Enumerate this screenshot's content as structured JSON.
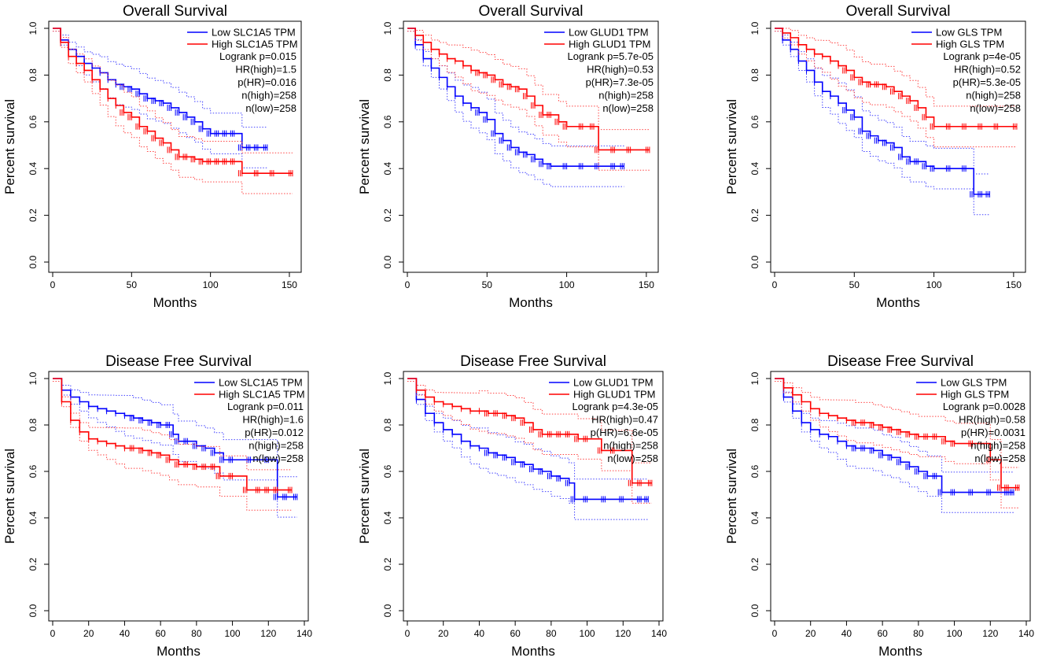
{
  "figure": {
    "description_free": true
  },
  "chart_data": [
    {
      "type": "line",
      "title": "Overall Survival",
      "xlabel": "Months",
      "ylabel": "Percent survival",
      "xlim": [
        0,
        155
      ],
      "xticks": [
        0,
        50,
        100,
        150
      ],
      "ylim": [
        0,
        1
      ],
      "yticks": [
        0.0,
        0.2,
        0.4,
        0.6,
        0.8,
        1.0
      ],
      "ytick_labels": [
        "0.0",
        "0.2",
        "0.4",
        "0.6",
        "0.8",
        "1.0"
      ],
      "legend": [
        "Low SLC1A5 TPM",
        "High SLC1A5 TPM"
      ],
      "stats": [
        "Logrank p=0.015",
        "HR(high)=1.5",
        "p(HR)=0.016",
        "n(high)=258",
        "n(low)=258"
      ],
      "series": [
        {
          "name": "Low SLC1A5 TPM",
          "color": "#0000ff",
          "x": [
            0,
            5,
            10,
            15,
            20,
            25,
            30,
            35,
            40,
            45,
            50,
            55,
            60,
            65,
            70,
            75,
            80,
            85,
            90,
            95,
            100,
            105,
            110,
            115,
            120,
            125,
            130,
            136
          ],
          "y": [
            1.0,
            0.95,
            0.91,
            0.88,
            0.85,
            0.83,
            0.81,
            0.78,
            0.76,
            0.75,
            0.74,
            0.72,
            0.7,
            0.69,
            0.68,
            0.66,
            0.64,
            0.62,
            0.6,
            0.57,
            0.55,
            0.55,
            0.55,
            0.55,
            0.49,
            0.49,
            0.49,
            0.49
          ]
        },
        {
          "name": "High SLC1A5 TPM",
          "color": "#ff0000",
          "x": [
            0,
            5,
            10,
            15,
            20,
            25,
            30,
            35,
            40,
            45,
            50,
            55,
            60,
            65,
            70,
            75,
            80,
            85,
            90,
            95,
            100,
            105,
            110,
            115,
            120,
            130,
            140,
            152
          ],
          "y": [
            1.0,
            0.94,
            0.88,
            0.85,
            0.82,
            0.78,
            0.74,
            0.7,
            0.67,
            0.64,
            0.62,
            0.58,
            0.56,
            0.53,
            0.51,
            0.48,
            0.45,
            0.45,
            0.44,
            0.43,
            0.43,
            0.43,
            0.43,
            0.43,
            0.38,
            0.38,
            0.38,
            0.38
          ]
        }
      ]
    },
    {
      "type": "line",
      "title": "Overall Survival",
      "xlabel": "Months",
      "ylabel": "Percent survival",
      "xlim": [
        0,
        155
      ],
      "xticks": [
        0,
        50,
        100,
        150
      ],
      "ylim": [
        0,
        1
      ],
      "yticks": [
        0.0,
        0.2,
        0.4,
        0.6,
        0.8,
        1.0
      ],
      "ytick_labels": [
        "0.0",
        "0.2",
        "0.4",
        "0.6",
        "0.8",
        "1.0"
      ],
      "legend": [
        "Low GLUD1 TPM",
        "High GLUD1 TPM"
      ],
      "stats": [
        "Logrank p=5.7e-05",
        "HR(high)=0.53",
        "p(HR)=7.3e-05",
        "n(high)=258",
        "n(low)=258"
      ],
      "series": [
        {
          "name": "Low GLUD1 TPM",
          "color": "#0000ff",
          "x": [
            0,
            5,
            10,
            15,
            20,
            25,
            30,
            35,
            40,
            45,
            50,
            55,
            60,
            65,
            70,
            75,
            80,
            85,
            90,
            100,
            110,
            120,
            130,
            136
          ],
          "y": [
            1.0,
            0.93,
            0.87,
            0.83,
            0.79,
            0.75,
            0.71,
            0.68,
            0.66,
            0.64,
            0.61,
            0.55,
            0.52,
            0.49,
            0.47,
            0.46,
            0.44,
            0.42,
            0.41,
            0.41,
            0.41,
            0.41,
            0.41,
            0.41
          ]
        },
        {
          "name": "High GLUD1 TPM",
          "color": "#ff0000",
          "x": [
            0,
            5,
            10,
            15,
            20,
            25,
            30,
            35,
            40,
            45,
            50,
            55,
            60,
            65,
            70,
            75,
            80,
            85,
            90,
            95,
            100,
            110,
            117,
            120,
            130,
            140,
            152
          ],
          "y": [
            1.0,
            0.97,
            0.94,
            0.91,
            0.89,
            0.87,
            0.86,
            0.84,
            0.82,
            0.81,
            0.8,
            0.78,
            0.76,
            0.75,
            0.74,
            0.71,
            0.67,
            0.63,
            0.63,
            0.6,
            0.58,
            0.58,
            0.58,
            0.48,
            0.48,
            0.48,
            0.48
          ]
        }
      ]
    },
    {
      "type": "line",
      "title": "Overall Survival",
      "xlabel": "Months",
      "ylabel": "Percent survival",
      "xlim": [
        0,
        155
      ],
      "xticks": [
        0,
        50,
        100,
        150
      ],
      "ylim": [
        0,
        1
      ],
      "yticks": [
        0.0,
        0.2,
        0.4,
        0.6,
        0.8,
        1.0
      ],
      "ytick_labels": [
        "0.0",
        "0.2",
        "0.4",
        "0.6",
        "0.8",
        "1.0"
      ],
      "legend": [
        "Low GLS TPM",
        "High GLS TPM"
      ],
      "stats": [
        "Logrank p=4e-05",
        "HR(high)=0.52",
        "p(HR)=5.3e-05",
        "n(high)=258",
        "n(low)=258"
      ],
      "series": [
        {
          "name": "Low GLS TPM",
          "color": "#0000ff",
          "x": [
            0,
            5,
            10,
            15,
            20,
            25,
            30,
            35,
            40,
            45,
            50,
            55,
            60,
            65,
            70,
            75,
            80,
            85,
            90,
            95,
            100,
            110,
            120,
            125,
            130,
            135
          ],
          "y": [
            1.0,
            0.95,
            0.91,
            0.86,
            0.82,
            0.77,
            0.73,
            0.71,
            0.68,
            0.65,
            0.62,
            0.56,
            0.54,
            0.52,
            0.51,
            0.49,
            0.45,
            0.43,
            0.43,
            0.41,
            0.4,
            0.4,
            0.4,
            0.29,
            0.29,
            0.29
          ]
        },
        {
          "name": "High GLS TPM",
          "color": "#ff0000",
          "x": [
            0,
            5,
            10,
            15,
            20,
            25,
            30,
            35,
            40,
            45,
            50,
            55,
            60,
            65,
            70,
            75,
            80,
            85,
            90,
            95,
            100,
            110,
            120,
            130,
            140,
            152
          ],
          "y": [
            1.0,
            0.98,
            0.96,
            0.93,
            0.91,
            0.89,
            0.88,
            0.86,
            0.84,
            0.82,
            0.79,
            0.77,
            0.76,
            0.76,
            0.75,
            0.73,
            0.71,
            0.69,
            0.66,
            0.62,
            0.58,
            0.58,
            0.58,
            0.58,
            0.58,
            0.58
          ]
        }
      ]
    },
    {
      "type": "line",
      "title": "Disease Free Survival",
      "xlabel": "Months",
      "ylabel": "Percent survival",
      "xlim": [
        0,
        140
      ],
      "xticks": [
        0,
        20,
        40,
        60,
        80,
        100,
        120,
        140
      ],
      "ylim": [
        0,
        1
      ],
      "yticks": [
        0.0,
        0.2,
        0.4,
        0.6,
        0.8,
        1.0
      ],
      "ytick_labels": [
        "0.0",
        "0.2",
        "0.4",
        "0.6",
        "0.8",
        "1.0"
      ],
      "legend": [
        "Low SLC1A5 TPM",
        "High SLC1A5 TPM"
      ],
      "stats": [
        "Logrank p=0.011",
        "HR(high)=1.6",
        "p(HR)=0.012",
        "n(high)=258",
        "n(low)=258"
      ],
      "series": [
        {
          "name": "Low SLC1A5 TPM",
          "color": "#0000ff",
          "x": [
            0,
            5,
            10,
            15,
            20,
            25,
            30,
            35,
            40,
            45,
            50,
            55,
            60,
            65,
            67,
            70,
            75,
            80,
            85,
            90,
            95,
            100,
            110,
            120,
            125,
            130,
            136
          ],
          "y": [
            1.0,
            0.95,
            0.92,
            0.9,
            0.88,
            0.87,
            0.86,
            0.85,
            0.84,
            0.83,
            0.82,
            0.81,
            0.8,
            0.8,
            0.76,
            0.73,
            0.73,
            0.71,
            0.7,
            0.68,
            0.65,
            0.65,
            0.65,
            0.65,
            0.49,
            0.49,
            0.49
          ]
        },
        {
          "name": "High SLC1A5 TPM",
          "color": "#ff0000",
          "x": [
            0,
            5,
            10,
            15,
            20,
            25,
            30,
            35,
            40,
            45,
            50,
            55,
            60,
            65,
            70,
            75,
            80,
            85,
            90,
            93,
            100,
            108,
            115,
            120,
            125,
            133
          ],
          "y": [
            1.0,
            0.9,
            0.82,
            0.77,
            0.74,
            0.73,
            0.72,
            0.71,
            0.7,
            0.7,
            0.69,
            0.68,
            0.67,
            0.65,
            0.63,
            0.63,
            0.62,
            0.62,
            0.62,
            0.58,
            0.58,
            0.52,
            0.52,
            0.52,
            0.52,
            0.52
          ]
        }
      ]
    },
    {
      "type": "line",
      "title": "Disease Free Survival",
      "xlabel": "Months",
      "ylabel": "Percent survival",
      "xlim": [
        0,
        140
      ],
      "xticks": [
        0,
        20,
        40,
        60,
        80,
        100,
        120,
        140
      ],
      "ylim": [
        0,
        1
      ],
      "yticks": [
        0.0,
        0.2,
        0.4,
        0.6,
        0.8,
        1.0
      ],
      "ytick_labels": [
        "0.0",
        "0.2",
        "0.4",
        "0.6",
        "0.8",
        "1.0"
      ],
      "legend": [
        "Low GLUD1 TPM",
        "High GLUD1 TPM"
      ],
      "stats": [
        "Logrank p=4.3e-05",
        "HR(high)=0.47",
        "p(HR)=6.6e-05",
        "n(high)=258",
        "n(low)=258"
      ],
      "series": [
        {
          "name": "Low GLUD1 TPM",
          "color": "#0000ff",
          "x": [
            0,
            5,
            10,
            15,
            20,
            25,
            30,
            35,
            40,
            45,
            50,
            55,
            60,
            65,
            70,
            75,
            80,
            85,
            90,
            93,
            100,
            110,
            120,
            130,
            134
          ],
          "y": [
            1.0,
            0.91,
            0.85,
            0.81,
            0.78,
            0.76,
            0.73,
            0.71,
            0.7,
            0.68,
            0.67,
            0.66,
            0.64,
            0.63,
            0.61,
            0.6,
            0.58,
            0.57,
            0.55,
            0.48,
            0.48,
            0.48,
            0.48,
            0.48,
            0.48
          ]
        },
        {
          "name": "High GLUD1 TPM",
          "color": "#ff0000",
          "x": [
            0,
            5,
            10,
            15,
            20,
            25,
            30,
            35,
            40,
            45,
            50,
            55,
            60,
            65,
            70,
            75,
            80,
            85,
            90,
            95,
            100,
            108,
            115,
            125,
            130,
            136
          ],
          "y": [
            1.0,
            0.95,
            0.92,
            0.9,
            0.89,
            0.88,
            0.87,
            0.86,
            0.86,
            0.85,
            0.85,
            0.84,
            0.83,
            0.81,
            0.78,
            0.76,
            0.76,
            0.76,
            0.76,
            0.74,
            0.74,
            0.69,
            0.69,
            0.55,
            0.55,
            0.55
          ]
        }
      ]
    },
    {
      "type": "line",
      "title": "Disease Free Survival",
      "xlabel": "Months",
      "ylabel": "Percent survival",
      "xlim": [
        0,
        140
      ],
      "xticks": [
        0,
        20,
        40,
        60,
        80,
        100,
        120,
        140
      ],
      "ylim": [
        0,
        1
      ],
      "yticks": [
        0.0,
        0.2,
        0.4,
        0.6,
        0.8,
        1.0
      ],
      "ytick_labels": [
        "0.0",
        "0.2",
        "0.4",
        "0.6",
        "0.8",
        "1.0"
      ],
      "legend": [
        "Low GLS TPM",
        "High GLS TPM"
      ],
      "stats": [
        "Logrank p=0.0028",
        "HR(high)=0.58",
        "p(HR)=0.0031",
        "n(high)=258",
        "n(low)=258"
      ],
      "series": [
        {
          "name": "Low GLS TPM",
          "color": "#0000ff",
          "x": [
            0,
            5,
            10,
            15,
            20,
            25,
            30,
            35,
            40,
            45,
            50,
            55,
            60,
            65,
            70,
            75,
            80,
            85,
            90,
            93,
            100,
            110,
            120,
            130,
            133
          ],
          "y": [
            1.0,
            0.92,
            0.86,
            0.81,
            0.78,
            0.76,
            0.75,
            0.73,
            0.71,
            0.7,
            0.7,
            0.69,
            0.67,
            0.66,
            0.64,
            0.62,
            0.6,
            0.58,
            0.58,
            0.51,
            0.51,
            0.51,
            0.51,
            0.51,
            0.51
          ]
        },
        {
          "name": "High GLS TPM",
          "color": "#ff0000",
          "x": [
            0,
            5,
            10,
            15,
            20,
            25,
            30,
            35,
            40,
            45,
            50,
            55,
            60,
            65,
            70,
            75,
            80,
            85,
            90,
            95,
            100,
            110,
            120,
            126,
            130,
            136
          ],
          "y": [
            1.0,
            0.96,
            0.93,
            0.9,
            0.87,
            0.85,
            0.84,
            0.83,
            0.82,
            0.81,
            0.81,
            0.8,
            0.79,
            0.78,
            0.77,
            0.76,
            0.75,
            0.75,
            0.75,
            0.73,
            0.72,
            0.72,
            0.65,
            0.53,
            0.53,
            0.53
          ]
        }
      ]
    }
  ]
}
